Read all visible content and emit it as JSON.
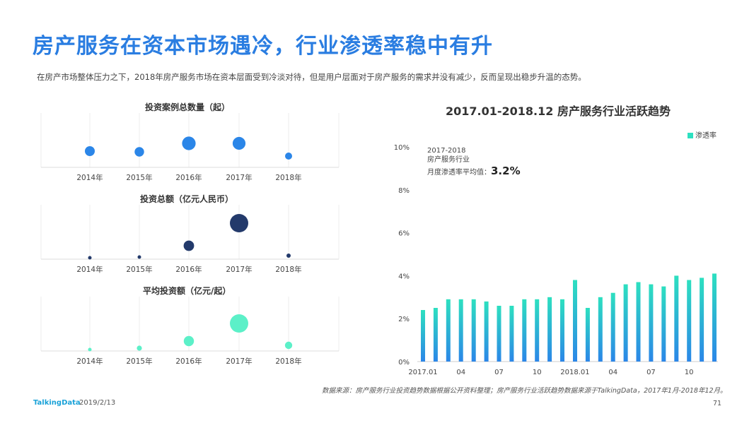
{
  "title": "房产服务在资本市场遇冷，行业渗透率稳中有升",
  "subtitle": "在房产市场整体压力之下，2018年房产服务市场在资本层面受到冷淡对待，但是用户层面对于房产服务的需求并没有减少，反而呈现出稳步升温的态势。",
  "footer": {
    "source": "数据来源：房产服务行业投资趋势数据根据公开资料整理；房产服务行业活跃趋势数据来源于TalkingData，2017年1月-2018年12月。",
    "brand": "TalkingData",
    "date": "2019/2/13",
    "page": "71"
  },
  "chart_data": [
    {
      "type": "scatter",
      "title": "投资案例总数量（起）",
      "categories": [
        "2014年",
        "2015年",
        "2016年",
        "2017年",
        "2018年"
      ],
      "size_values": [
        0.58,
        0.56,
        0.8,
        0.76,
        0.42
      ],
      "color": "#2b86e8"
    },
    {
      "type": "scatter",
      "title": "投资总额（亿元人民币）",
      "categories": [
        "2014年",
        "2015年",
        "2016年",
        "2017年",
        "2018年"
      ],
      "size_values": [
        0.08,
        0.12,
        0.57,
        1.0,
        0.23
      ],
      "color": "#233a6b"
    },
    {
      "type": "scatter",
      "title": "平均投资额（亿元/起）",
      "categories": [
        "2014年",
        "2015年",
        "2016年",
        "2017年",
        "2018年"
      ],
      "size_values": [
        0.12,
        0.28,
        0.55,
        1.0,
        0.4
      ],
      "color": "#5cf0c8"
    },
    {
      "type": "bar",
      "title": "2017.01-2018.12  房产服务行业活跃趋势",
      "series_name": "渗透率",
      "x": [
        "2017.01",
        "2017.02",
        "2017.03",
        "2017.04",
        "2017.05",
        "2017.06",
        "2017.07",
        "2017.08",
        "2017.09",
        "2017.10",
        "2017.11",
        "2017.12",
        "2018.01",
        "2018.02",
        "2018.03",
        "2018.04",
        "2018.05",
        "2018.06",
        "2018.07",
        "2018.08",
        "2018.09",
        "2018.10",
        "2018.11",
        "2018.12"
      ],
      "values": [
        2.4,
        2.5,
        2.9,
        2.9,
        2.9,
        2.8,
        2.6,
        2.6,
        2.9,
        2.9,
        3.0,
        2.9,
        3.8,
        2.5,
        3.0,
        3.2,
        3.6,
        3.7,
        3.6,
        3.5,
        4.0,
        3.8,
        3.9,
        4.1
      ],
      "x_tick_labels": [
        "2017.01",
        "04",
        "07",
        "10",
        "2018.01",
        "04",
        "07",
        "10"
      ],
      "y_ticks": [
        "0%",
        "2%",
        "4%",
        "6%",
        "8%",
        "10%"
      ],
      "ylim": [
        0,
        10
      ],
      "annotation": {
        "line1": "2017-2018",
        "line2": "房产服务行业",
        "line3": "月度渗透率平均值：",
        "value": "3.2%"
      },
      "gradient": [
        "#2de0c0",
        "#2b86e8"
      ]
    }
  ]
}
